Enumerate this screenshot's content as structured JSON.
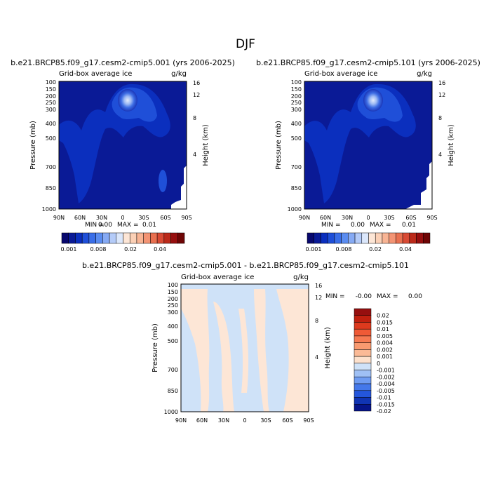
{
  "figure": {
    "title": "DJF"
  },
  "chart_data": [
    {
      "type": "contour",
      "title": "b.e21.BRCP85.f09_g17.cesm2-cmip5.001 (yrs 2006-2025)",
      "subtitle_left": "Grid-box average ice",
      "subtitle_right": "g/kg",
      "ylabel": "Pressure (mb)",
      "ylabel_right": "Height (km)",
      "x_ticks": [
        "90N",
        "60N",
        "30N",
        "0",
        "30S",
        "60S",
        "90S"
      ],
      "y_ticks": [
        "100",
        "150",
        "200",
        "250",
        "300",
        "400",
        "500",
        "700",
        "850",
        "1000"
      ],
      "y_ticks_right": [
        "16",
        "12",
        "8",
        "4"
      ],
      "stats": {
        "min_label": "MIN =",
        "min": "0.00",
        "max_label": "MAX =",
        "max": "0.01"
      },
      "colorbar": {
        "labels": [
          "0.001",
          "0.008",
          "0.02",
          "0.04"
        ],
        "colors": [
          "#08086e",
          "#0a1a96",
          "#0b2fbe",
          "#1f4fd8",
          "#3a6ee8",
          "#5a8cf0",
          "#86aaf4",
          "#b4cbf8",
          "#dbe7fb",
          "#fde6d6",
          "#fbd0b6",
          "#f8b494",
          "#f39474",
          "#e87050",
          "#d84a34",
          "#bb2a1a",
          "#960f0f",
          "#6e0505"
        ]
      }
    },
    {
      "type": "contour",
      "title": "b.e21.BRCP85.f09_g17.cesm2-cmip5.101 (yrs 2006-2025)",
      "subtitle_left": "Grid-box average ice",
      "subtitle_right": "g/kg",
      "ylabel": "Pressure (mb)",
      "ylabel_right": "Height (km)",
      "x_ticks": [
        "90N",
        "60N",
        "30N",
        "0",
        "30S",
        "60S",
        "90S"
      ],
      "y_ticks": [
        "100",
        "150",
        "200",
        "250",
        "300",
        "400",
        "500",
        "700",
        "850",
        "1000"
      ],
      "y_ticks_right": [
        "16",
        "12",
        "8",
        "4"
      ],
      "stats": {
        "min_label": "MIN =",
        "min": "0.00",
        "max_label": "MAX =",
        "max": "0.01"
      },
      "colorbar": {
        "labels": [
          "0.001",
          "0.008",
          "0.02",
          "0.04"
        ]
      }
    },
    {
      "type": "contour",
      "title": "b.e21.BRCP85.f09_g17.cesm2-cmip5.001 - b.e21.BRCP85.f09_g17.cesm2-cmip5.101",
      "subtitle_left": "Grid-box average ice",
      "subtitle_right": "g/kg",
      "ylabel": "Pressure (mb)",
      "ylabel_right": "Height (km)",
      "x_ticks": [
        "90N",
        "60N",
        "30N",
        "0",
        "30S",
        "60S",
        "90S"
      ],
      "y_ticks": [
        "100",
        "150",
        "200",
        "250",
        "300",
        "400",
        "500",
        "700",
        "850",
        "1000"
      ],
      "y_ticks_right": [
        "16",
        "12",
        "8",
        "4"
      ],
      "stats": {
        "min_label": "MIN =",
        "min": "-0.00",
        "max_label": "MAX =",
        "max": "0.00"
      },
      "colorbar": {
        "labels": [
          "0.02",
          "0.015",
          "0.01",
          "0.005",
          "0.004",
          "0.002",
          "0.001",
          "0",
          "-0.001",
          "-0.002",
          "-0.004",
          "-0.005",
          "-0.01",
          "-0.015",
          "-0.02"
        ],
        "colors": [
          "#960f0f",
          "#c0200f",
          "#dd3a1e",
          "#ef5a36",
          "#f67a52",
          "#f99a70",
          "#fbba96",
          "#fde1cc",
          "#cfe2f8",
          "#9fc0f5",
          "#6f9cf2",
          "#4478ea",
          "#2456dc",
          "#1034b4",
          "#06148a"
        ]
      }
    }
  ]
}
